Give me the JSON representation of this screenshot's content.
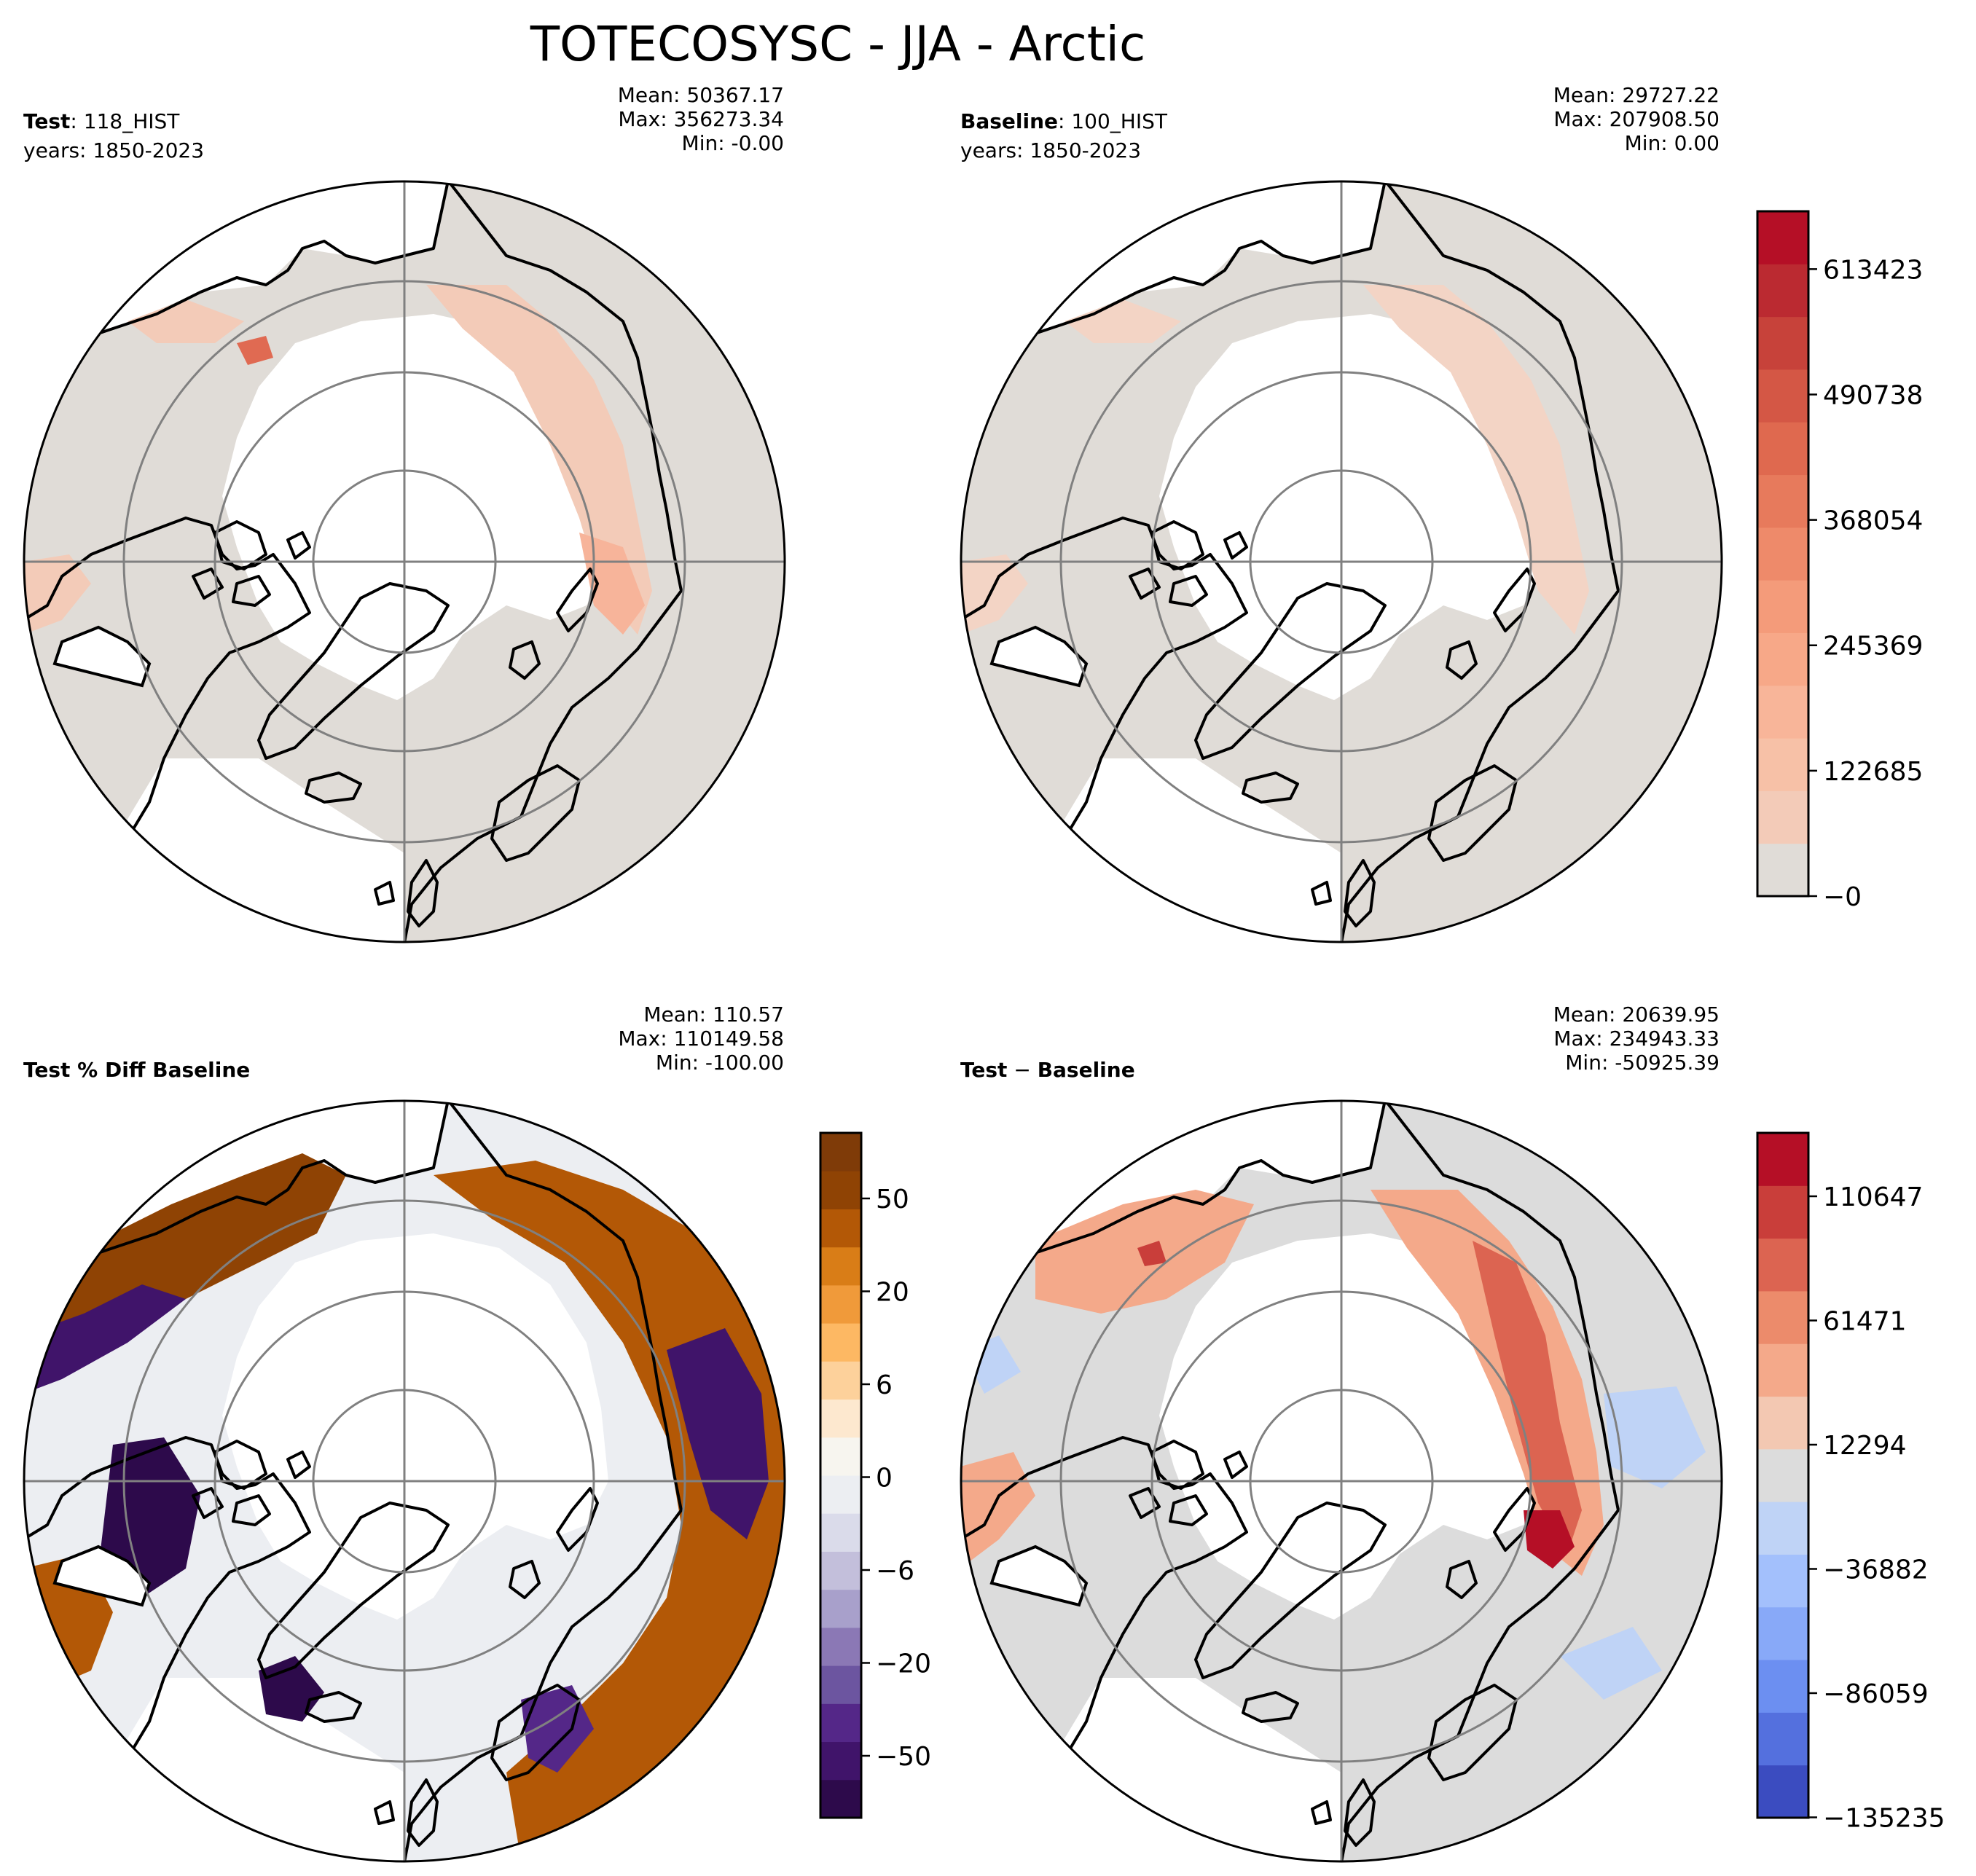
{
  "figure": {
    "title": "TOTECOSYSC - JJA - Arctic"
  },
  "panels": {
    "test": {
      "name_bold": "Test",
      "name_rest": ": 118_HIST",
      "years": "years: 1850-2023",
      "mean": "Mean: 50367.17",
      "max": "Max: 356273.34",
      "min": "Min: -0.00"
    },
    "baseline": {
      "name_bold": "Baseline",
      "name_rest": ": 100_HIST",
      "years": "years: 1850-2023",
      "mean": "Mean: 29727.22",
      "max": "Max: 207908.50",
      "min": "Min:  0.00"
    },
    "pctdiff": {
      "name_bold": "Test % Diff Baseline",
      "mean": "Mean: 110.57",
      "max": "Max: 110149.58",
      "min": "Min: -100.00"
    },
    "diff": {
      "name_bold": "Test",
      "name_mid": " − ",
      "name_bold2": "Baseline",
      "mean": "Mean: 20639.95",
      "max": "Max: 234943.33",
      "min": "Min: -50925.39"
    }
  },
  "colorbars": {
    "main": {
      "min": -2.12,
      "max": 670000,
      "ticks": [
        {
          "value": 0,
          "label": "−0"
        },
        {
          "value": 122685,
          "label": "122685"
        },
        {
          "value": 245369,
          "label": "245369"
        },
        {
          "value": 368054,
          "label": "368054"
        },
        {
          "value": 490738,
          "label": "490738"
        },
        {
          "value": 613423,
          "label": "613423"
        }
      ],
      "colors": [
        "#e0dcd7",
        "#f3cbb8",
        "#f7c1a7",
        "#f8b599",
        "#f7a888",
        "#f49b7a",
        "#ee8a6a",
        "#e77a5c",
        "#df694f",
        "#d45745",
        "#c7423a",
        "#bb2a31",
        "#b50f26"
      ]
    },
    "pct": {
      "ticks": [
        {
          "label": "50"
        },
        {
          "label": "20"
        },
        {
          "label": "6"
        },
        {
          "label": "0"
        },
        {
          "label": "−6"
        },
        {
          "label": "−20"
        },
        {
          "label": "−50"
        }
      ],
      "colors": [
        "#2d0a4b",
        "#40146a",
        "#542788",
        "#6c55a0",
        "#8b78b5",
        "#a8a0cb",
        "#c3bfdb",
        "#dadbea",
        "#eceef2",
        "#f7f5ef",
        "#fde8cf",
        "#fdd19b",
        "#fdb863",
        "#f09a3a",
        "#d97d17",
        "#b35806",
        "#8f4304",
        "#7f3b08"
      ]
    },
    "diff": {
      "ticks": [
        {
          "label": "110647"
        },
        {
          "label": "61471"
        },
        {
          "label": "12294"
        },
        {
          "label": "−36882"
        },
        {
          "label": "−86059"
        },
        {
          "label": "−135235"
        }
      ],
      "colors": [
        "#3b4cc0",
        "#5470de",
        "#6c8ff1",
        "#88a9f8",
        "#a3c0fc",
        "#bfd3f6",
        "#dcdcdc",
        "#f3c8b2",
        "#f4a98a",
        "#ec8b6b",
        "#dc6451",
        "#c93e3a",
        "#b50f26"
      ]
    }
  },
  "map_colors": {
    "land_main": "#e0dcd7",
    "land_diff": "#dcdcdc",
    "land_pct": "#eceef2",
    "coast": "#000000",
    "grid": "#808080"
  }
}
